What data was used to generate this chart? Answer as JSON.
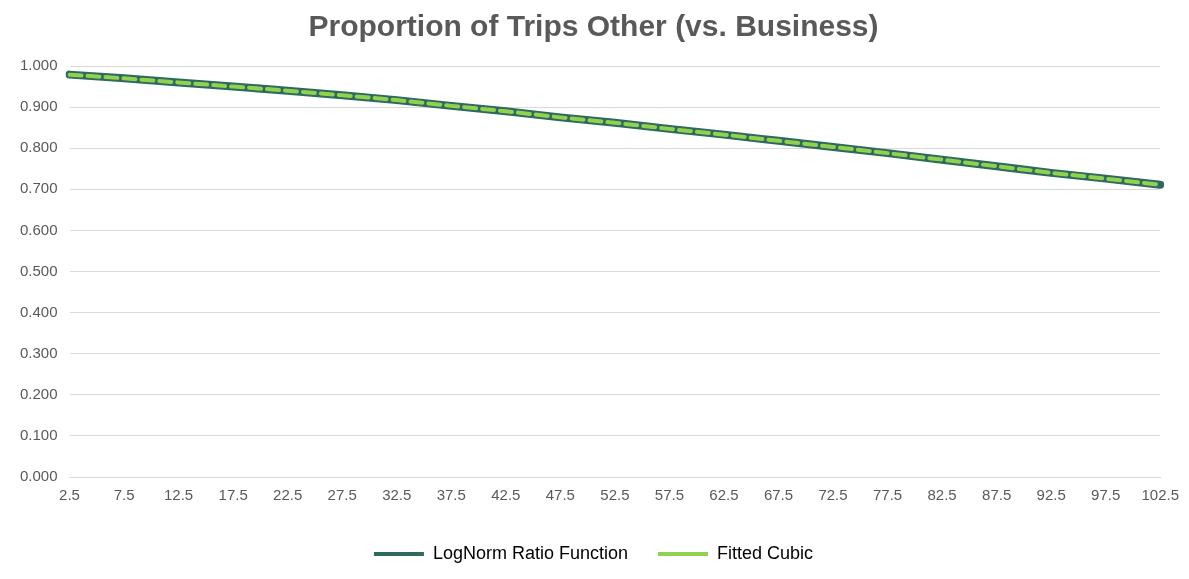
{
  "chart_data": {
    "type": "line",
    "title": "Proportion of Trips Other (vs. Business)",
    "categories": [
      "2.5",
      "7.5",
      "12.5",
      "17.5",
      "22.5",
      "27.5",
      "32.5",
      "37.5",
      "42.5",
      "47.5",
      "52.5",
      "57.5",
      "62.5",
      "67.5",
      "72.5",
      "77.5",
      "82.5",
      "87.5",
      "92.5",
      "97.5",
      "102.5"
    ],
    "series": [
      {
        "name": "LogNorm Ratio Function",
        "color": "#2e6b5e",
        "line_style": "solid",
        "values": [
          0.979,
          0.97,
          0.96,
          0.95,
          0.94,
          0.929,
          0.917,
          0.903,
          0.89,
          0.875,
          0.862,
          0.847,
          0.833,
          0.818,
          0.803,
          0.788,
          0.772,
          0.756,
          0.74,
          0.726,
          0.711
        ]
      },
      {
        "name": "Fitted Cubic",
        "color": "#92d050",
        "line_style": "dashed",
        "values": [
          0.979,
          0.97,
          0.96,
          0.95,
          0.94,
          0.929,
          0.917,
          0.903,
          0.89,
          0.875,
          0.862,
          0.847,
          0.833,
          0.818,
          0.803,
          0.788,
          0.772,
          0.756,
          0.74,
          0.726,
          0.711
        ]
      }
    ],
    "ylim": [
      0,
      1
    ],
    "yticks": [
      {
        "value": 0,
        "label": "0.000"
      },
      {
        "value": 0.1,
        "label": "0.100"
      },
      {
        "value": 0.2,
        "label": "0.200"
      },
      {
        "value": 0.3,
        "label": "0.300"
      },
      {
        "value": 0.4,
        "label": "0.400"
      },
      {
        "value": 0.5,
        "label": "0.500"
      },
      {
        "value": 0.6,
        "label": "0.600"
      },
      {
        "value": 0.7,
        "label": "0.700"
      },
      {
        "value": 0.8,
        "label": "0.800"
      },
      {
        "value": 0.9,
        "label": "0.900"
      },
      {
        "value": 1,
        "label": "1.000"
      }
    ],
    "grid": "y",
    "legend": "bottom",
    "marker": "none"
  }
}
